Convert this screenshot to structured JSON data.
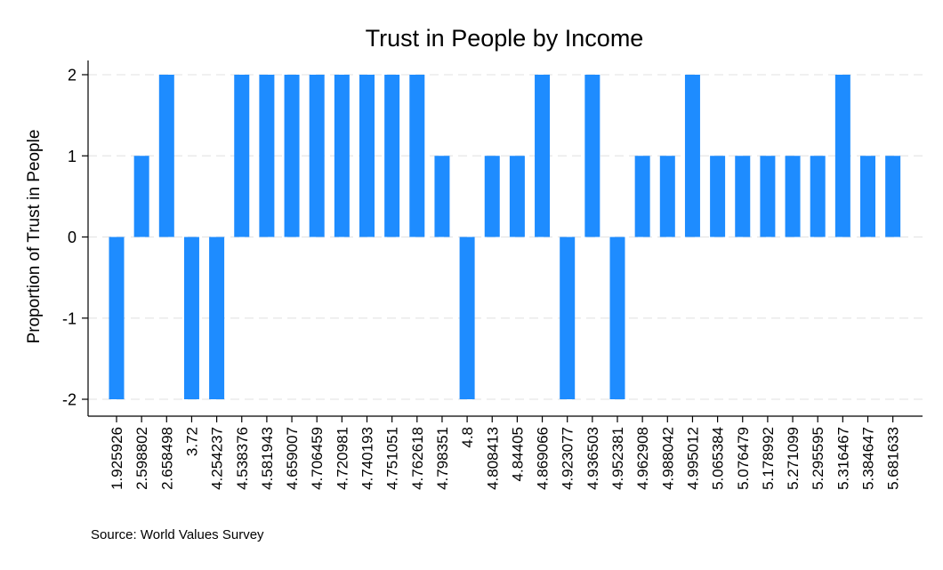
{
  "chart_data": {
    "type": "bar",
    "title": "Trust in People by Income",
    "xlabel": "",
    "ylabel": "Proportion of Trust in People",
    "ylim": [
      -2,
      2
    ],
    "yticks": [
      "-2",
      "-1",
      "0",
      "1",
      "2"
    ],
    "grid": true,
    "bar_color": "#1e8cff",
    "categories": [
      "1.925926",
      "2.598802",
      "2.658498",
      "3.72",
      "4.254237",
      "4.538376",
      "4.581943",
      "4.659007",
      "4.706459",
      "4.720981",
      "4.740193",
      "4.751051",
      "4.762618",
      "4.798351",
      "4.8",
      "4.808413",
      "4.84405",
      "4.869066",
      "4.923077",
      "4.936503",
      "4.952381",
      "4.962908",
      "4.988042",
      "4.995012",
      "5.065384",
      "5.076479",
      "5.178992",
      "5.271099",
      "5.295595",
      "5.316467",
      "5.384647",
      "5.681633"
    ],
    "values": [
      -2,
      1,
      2,
      -2,
      -2,
      2,
      2,
      2,
      2,
      2,
      2,
      2,
      2,
      1,
      -2,
      1,
      1,
      2,
      -2,
      2,
      -2,
      1,
      1,
      2,
      1,
      1,
      1,
      1,
      1,
      2,
      1,
      1
    ],
    "note": "Source: World Values Survey"
  }
}
